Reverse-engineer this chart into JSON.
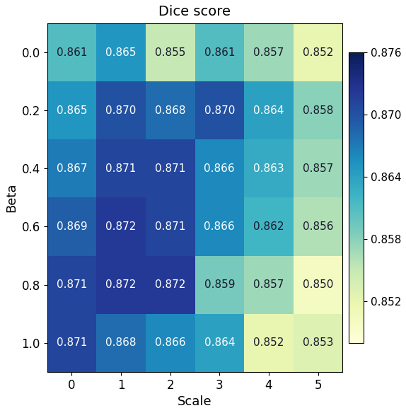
{
  "title": "Dice score",
  "xlabel": "Scale",
  "ylabel": "Beta",
  "x_labels": [
    "0",
    "1",
    "2",
    "3",
    "4",
    "5"
  ],
  "y_labels": [
    "0.0",
    "0.2",
    "0.4",
    "0.6",
    "0.8",
    "1.0"
  ],
  "values": [
    [
      0.861,
      0.865,
      0.855,
      0.861,
      0.857,
      0.852
    ],
    [
      0.865,
      0.87,
      0.868,
      0.87,
      0.864,
      0.858
    ],
    [
      0.867,
      0.871,
      0.871,
      0.866,
      0.863,
      0.857
    ],
    [
      0.869,
      0.872,
      0.871,
      0.866,
      0.862,
      0.856
    ],
    [
      0.871,
      0.872,
      0.872,
      0.859,
      0.857,
      0.85
    ],
    [
      0.871,
      0.868,
      0.866,
      0.864,
      0.852,
      0.853
    ]
  ],
  "cmap": "YlGnBu",
  "vmin": 0.848,
  "vmax": 0.876,
  "colorbar_ticks": [
    0.852,
    0.858,
    0.864,
    0.87,
    0.876
  ],
  "white_text_threshold": 0.55,
  "figsize": [
    5.74,
    5.84
  ],
  "dpi": 100,
  "title_fontsize": 14,
  "axis_label_fontsize": 13,
  "tick_fontsize": 12,
  "annot_fontsize": 11,
  "cbar_fontsize": 11
}
